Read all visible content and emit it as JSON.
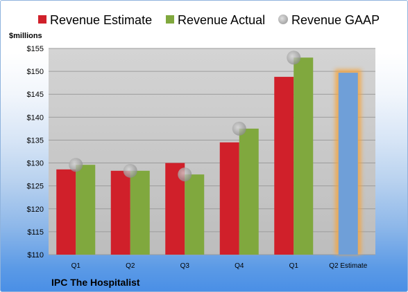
{
  "colors": {
    "estimate": "#d0202a",
    "actual": "#80a83e",
    "gaap": "#9a9a9a",
    "forecast": "#6f9fd8",
    "forecast_glow": "#f4a540",
    "plot_top": "#d4d4d4",
    "plot_bottom": "#bdbdbd"
  },
  "footer": {
    "company": "IPC The Hospitalist"
  },
  "chart_data": {
    "type": "bar",
    "ylabel": "$millions",
    "ylim": [
      110,
      155
    ],
    "ytick_step": 5,
    "ytick_labels": [
      "$110",
      "$115",
      "$120",
      "$125",
      "$130",
      "$135",
      "$140",
      "$145",
      "$150",
      "$155"
    ],
    "grid": true,
    "legend_position": "top",
    "categories": [
      "Q1",
      "Q2",
      "Q3",
      "Q4",
      "Q1",
      "Q2 Estimate"
    ],
    "series": [
      {
        "name": "Revenue Estimate",
        "values": [
          128.6,
          128.3,
          130.0,
          134.5,
          148.8,
          null
        ]
      },
      {
        "name": "Revenue Actual",
        "values": [
          129.6,
          128.3,
          127.5,
          137.5,
          153.0,
          null
        ]
      },
      {
        "name": "Revenue GAAP",
        "values": [
          129.6,
          128.3,
          127.5,
          137.5,
          153.0,
          null
        ]
      }
    ],
    "forecast": {
      "category": "Q2 Estimate",
      "value": 149.7
    }
  }
}
